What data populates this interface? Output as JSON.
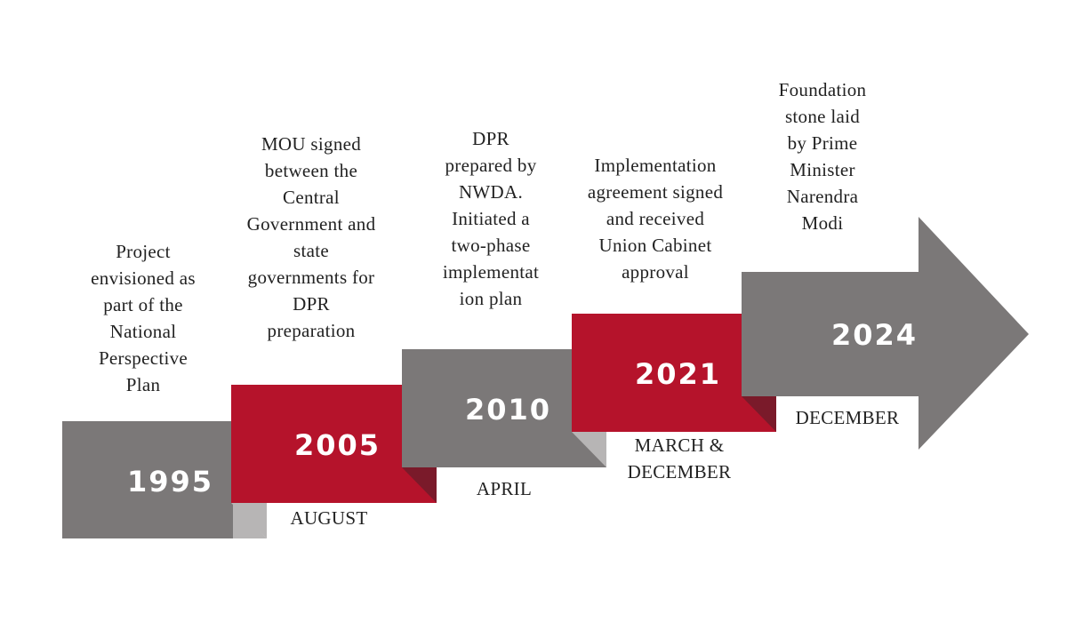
{
  "colors": {
    "gray": "#7b7878",
    "gray_fold": "#b7b5b5",
    "red": "#b5132b",
    "red_fold": "#7a1a2a",
    "text": "#222222",
    "year_text": "#ffffff"
  },
  "milestones": [
    {
      "year": "1995",
      "month": "",
      "description": "Project\nenvisioned as\npart of the\nNational\nPerspective\nPlan",
      "color": "gray"
    },
    {
      "year": "2005",
      "month": "AUGUST",
      "description": "MOU signed\nbetween the\nCentral\nGovernment and\nstate\ngovernments for\nDPR\npreparation",
      "color": "red"
    },
    {
      "year": "2010",
      "month": "APRIL",
      "description": "DPR\nprepared by\nNWDA.\nInitiated a\ntwo-phase\nimplementat\nion plan",
      "color": "gray"
    },
    {
      "year": "2021",
      "month": "MARCH &\nDECEMBER",
      "description": "Implementation\nagreement signed\nand received\nUnion Cabinet\napproval",
      "color": "red"
    },
    {
      "year": "2024",
      "month": "DECEMBER",
      "description": "Foundation\nstone laid\nby Prime\nMinister\nNarendra\nModi",
      "color": "gray"
    }
  ]
}
